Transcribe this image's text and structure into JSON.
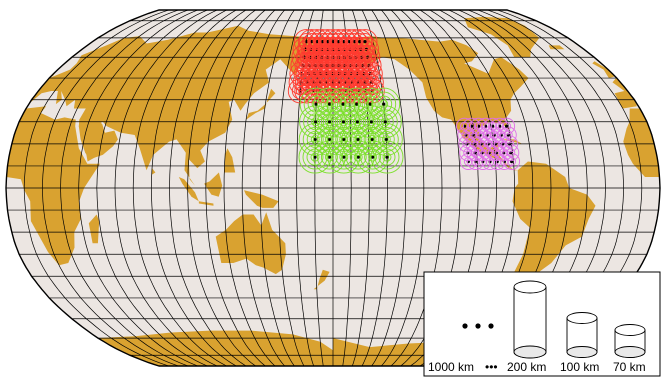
{
  "map": {
    "projection": "Robinson",
    "ocean_color": "#ece6e2",
    "land_color": "#d9a230",
    "outline_color": "#000000",
    "graticule_color": "#000000",
    "center_longitude": 180,
    "graticule": {
      "lon_step_deg": 10,
      "lat_step_deg": 10
    }
  },
  "markers": [
    {
      "color": "#ff3b30",
      "region": "North Pacific / Bering",
      "lon_range": [
        160,
        205
      ],
      "lat_range": [
        44,
        68
      ],
      "grid_step_deg": 4,
      "rings": 3
    },
    {
      "color": "#7be02a",
      "region": "Central Pacific",
      "lon_range": [
        170,
        210
      ],
      "lat_range": [
        14,
        38
      ],
      "grid_step_deg": 8,
      "rings": 4
    },
    {
      "color": "#e06fe8",
      "region": "Gulf of Mexico / Caribbean",
      "lon_range": [
        255,
        280
      ],
      "lat_range": [
        12,
        30
      ],
      "grid_step_deg": 4,
      "rings": 2
    }
  ],
  "legend": {
    "background": "#ffffff",
    "labels": [
      "1000 km",
      "200 km",
      "100 km",
      "70 km"
    ],
    "dots": "•••"
  }
}
